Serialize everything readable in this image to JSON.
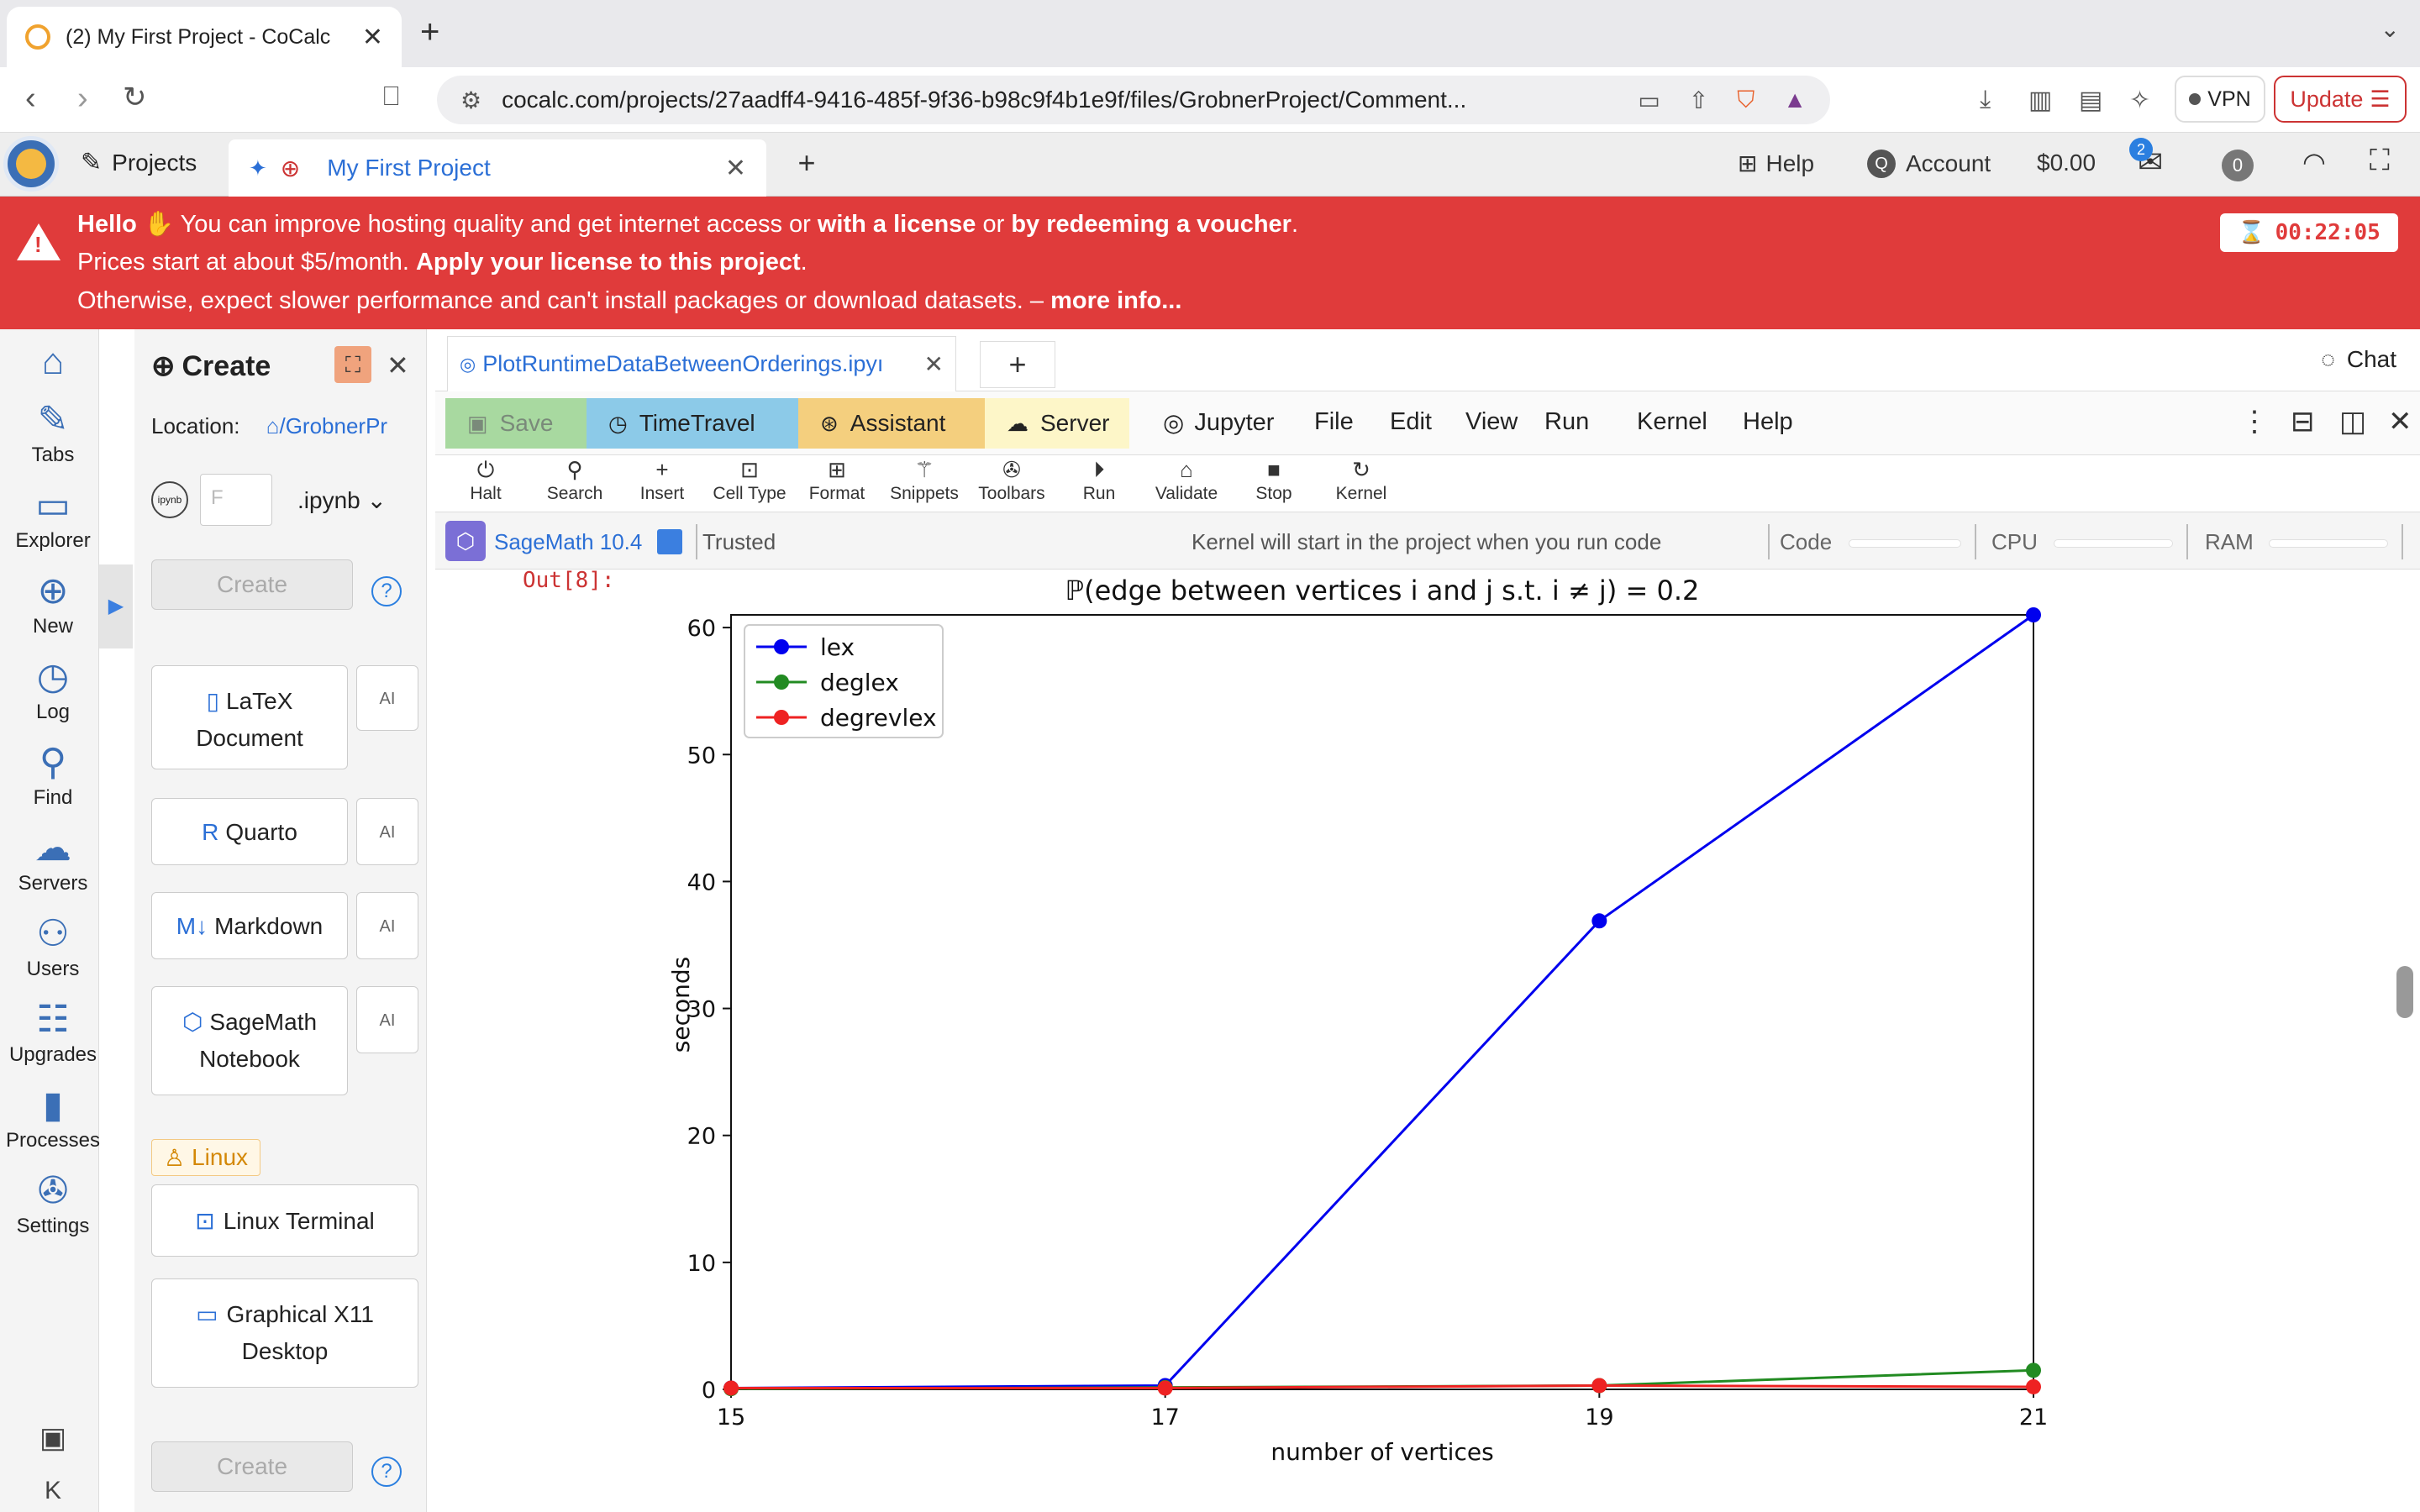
{
  "browser": {
    "tab_title": "(2) My First Project - CoCalc",
    "url": "cocalc.com/projects/27aadff4-9416-485f-9f36-b98c9f4b1e9f/files/GrobnerProject/Comment...",
    "vpn_label": "VPN",
    "update_label": "Update"
  },
  "topbar": {
    "projects_label": "Projects",
    "project_tab_label": "My First Project",
    "help_label": "Help",
    "account_label": "Account",
    "balance": "$0.00",
    "notification_count": "2",
    "zero_badge": "0"
  },
  "banner": {
    "hello": "Hello",
    "line1_a": " You can improve hosting quality and get internet access or ",
    "line1_b": "with a license",
    "line1_c": " or ",
    "line1_d": "by redeeming a voucher",
    "line1_e": ".",
    "line2_a": "Prices start at about $5/month. ",
    "line2_b": "Apply your license to this project",
    "line2_c": ".",
    "line3_a": "Otherwise, expect slower performance and can't install packages or download datasets. – ",
    "line3_b": "more info...",
    "timer": "00:22:05"
  },
  "sidebar": {
    "items": [
      {
        "label": "Tabs"
      },
      {
        "label": "Explorer"
      },
      {
        "label": "New"
      },
      {
        "label": "Log"
      },
      {
        "label": "Find"
      },
      {
        "label": "Servers"
      },
      {
        "label": "Users"
      },
      {
        "label": "Upgrades"
      },
      {
        "label": "Processes"
      },
      {
        "label": "Settings"
      }
    ]
  },
  "create_panel": {
    "title": "Create",
    "location_label": "Location:",
    "location_path": "/GrobnerPr",
    "filename_placeholder": "F",
    "extension": ".ipynb",
    "create_label": "Create",
    "help": "?",
    "ai": "AI",
    "latex": "LaTeX Document",
    "quarto": "Quarto",
    "markdown": "Markdown",
    "sagemath": "SageMath Notebook",
    "linux_tag": "Linux",
    "linux_terminal": "Linux Terminal",
    "x11": "Graphical X11 Desktop"
  },
  "editor": {
    "file_tab": "PlotRuntimeDataBetweenOrderings.ipyı",
    "chat_label": "Chat",
    "toolbar": {
      "save": "Save",
      "timetravel": "TimeTravel",
      "assistant": "Assistant",
      "server": "Server",
      "jupyter": "Jupyter",
      "menus": [
        "File",
        "Edit",
        "View",
        "Run",
        "Kernel",
        "Help"
      ]
    },
    "commands": [
      "Halt",
      "Search",
      "Insert",
      "Cell Type",
      "Format",
      "Snippets",
      "Toolbars",
      "Run",
      "Validate",
      "Stop",
      "Kernel"
    ],
    "kernel": {
      "name": "SageMath 10.4",
      "trusted": "Trusted",
      "status": "Kernel will start in the project when you run code",
      "code_label": "Code",
      "cpu_label": "CPU",
      "ram_label": "RAM"
    },
    "out_prompt": "Out[8]:"
  },
  "chart_data": {
    "type": "line",
    "title": "ℙ(edge between vertices i and j s.t. i ≠ j) = 0.2",
    "xlabel": "number of vertices",
    "ylabel": "seconds",
    "x": [
      15,
      17,
      19,
      21
    ],
    "xlim": [
      15,
      21
    ],
    "ylim": [
      0,
      61
    ],
    "xticks": [
      15,
      17,
      19,
      21
    ],
    "yticks": [
      0,
      10,
      20,
      30,
      40,
      50,
      60
    ],
    "legend_position": "top-left",
    "series": [
      {
        "name": "lex",
        "color": "#0000ee",
        "values": [
          0.1,
          0.3,
          36.9,
          61.0
        ]
      },
      {
        "name": "deglex",
        "color": "#228b22",
        "values": [
          0.05,
          0.15,
          0.3,
          1.5
        ]
      },
      {
        "name": "degrevlex",
        "color": "#ee2222",
        "values": [
          0.1,
          0.1,
          0.3,
          0.2
        ]
      }
    ]
  }
}
